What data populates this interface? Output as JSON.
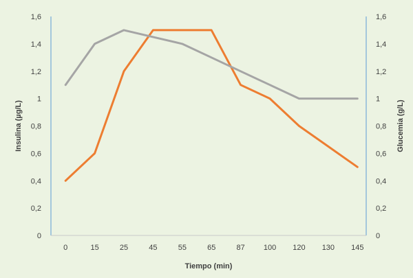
{
  "chart_data": {
    "type": "line",
    "categories": [
      "0",
      "15",
      "25",
      "45",
      "55",
      "65",
      "87",
      "100",
      "120",
      "130",
      "145"
    ],
    "xlabel": "Tiempo (min)",
    "ylabel_left": "Insulina  (µg/L)",
    "ylabel_right": "Glucemia (g/L)",
    "ylim_left": [
      0,
      1.6
    ],
    "ylim_right": [
      0,
      1.6
    ],
    "yticks_left": [
      "0",
      "0,2",
      "0,4",
      "0,6",
      "0,8",
      "1",
      "1,2",
      "1,4",
      "1,6"
    ],
    "yticks_right": [
      "0",
      "0,2",
      "0,4",
      "0,6",
      "0,8",
      "1",
      "1,2",
      "1,4",
      "1,6"
    ],
    "grid": false,
    "legend": "none",
    "series": [
      {
        "axis": "left",
        "color": "#ed7d31",
        "values": [
          0.4,
          0.6,
          1.2,
          1.5,
          1.5,
          1.5,
          1.1,
          1.0,
          0.8,
          0.65,
          0.5
        ]
      },
      {
        "axis": "right",
        "color": "#a5a5a5",
        "values": [
          1.1,
          1.4,
          1.5,
          1.45,
          1.4,
          1.3,
          1.2,
          1.1,
          1.0,
          1.0,
          1.0
        ]
      }
    ]
  }
}
